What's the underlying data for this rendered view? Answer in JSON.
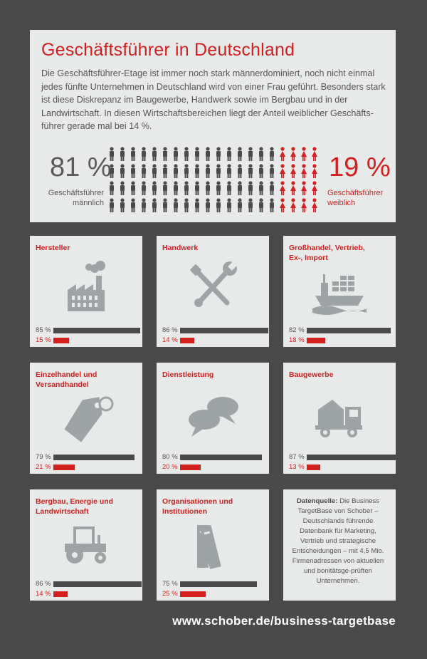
{
  "header": {
    "title": "Geschäftsführer in Deutschland",
    "intro": "Die Geschäftsführer-Etage ist immer noch stark männerdominiert, noch nicht einmal jedes fünfte Unternehmen in Deutschland wird von einer Frau geführt. Besonders stark ist diese Diskrepanz im Baugewerbe, Handwerk sowie im Bergbau und in der Landwirtschaft. In diesen Wirtschaftsbereichen liegt der Anteil weiblicher Geschäfts-führer gerade mal bei 14 %."
  },
  "summary": {
    "male_pct": "81 %",
    "male_label_1": "Geschäftsführer",
    "male_label_2": "männlich",
    "female_pct": "19 %",
    "female_label_1": "Geschäftsführer",
    "female_label_2": "weiblich",
    "male_share": 0.81
  },
  "colors": {
    "accent": "#d41f1f",
    "dark": "#4a4a4a",
    "panel": "#e8eaea",
    "icon": "#9ea3a5"
  },
  "sectors": [
    {
      "title_1": "Hersteller",
      "title_2": "",
      "icon": "factory-icon",
      "male_pct": "85 %",
      "female_pct": "15 %",
      "male_value": 85,
      "female_value": 15
    },
    {
      "title_1": "Handwerk",
      "title_2": "",
      "icon": "tools-icon",
      "male_pct": "86 %",
      "female_pct": "14 %",
      "male_value": 86,
      "female_value": 14
    },
    {
      "title_1": "Großhandel, Vertrieb,",
      "title_2": "Ex-, Import",
      "icon": "ship-icon",
      "male_pct": "82 %",
      "female_pct": "18 %",
      "male_value": 82,
      "female_value": 18
    },
    {
      "title_1": "Einzelhandel und",
      "title_2": "Versandhandel",
      "icon": "price-tag-icon",
      "male_pct": "79 %",
      "female_pct": "21 %",
      "male_value": 79,
      "female_value": 21
    },
    {
      "title_1": "Dienstleistung",
      "title_2": "",
      "icon": "speech-bubbles-icon",
      "male_pct": "80 %",
      "female_pct": "20 %",
      "male_value": 80,
      "female_value": 20
    },
    {
      "title_1": "Baugewerbe",
      "title_2": "",
      "icon": "truck-icon",
      "male_pct": "87 %",
      "female_pct": "13 %",
      "male_value": 87,
      "female_value": 13
    },
    {
      "title_1": "Bergbau, Energie und",
      "title_2": "Landwirtschaft",
      "icon": "tractor-icon",
      "male_pct": "86 %",
      "female_pct": "14 %",
      "male_value": 86,
      "female_value": 14
    },
    {
      "title_1": "Organisationen und",
      "title_2": "Institutionen",
      "icon": "binders-icon",
      "male_pct": "75 %",
      "female_pct": "25 %",
      "male_value": 75,
      "female_value": 25
    }
  ],
  "source": {
    "label": "Datenquelle:",
    "text": "Die Business TargetBase von Schober – Deutschlands führende Datenbank für Marketing, Vertrieb und strategische Entscheidungen – mit 4,5 Mio. Firmenadressen von aktuellen und bonitätsge-prüften Unternehmen."
  },
  "footer": {
    "url": "www.schober.de/business-targetbase"
  }
}
